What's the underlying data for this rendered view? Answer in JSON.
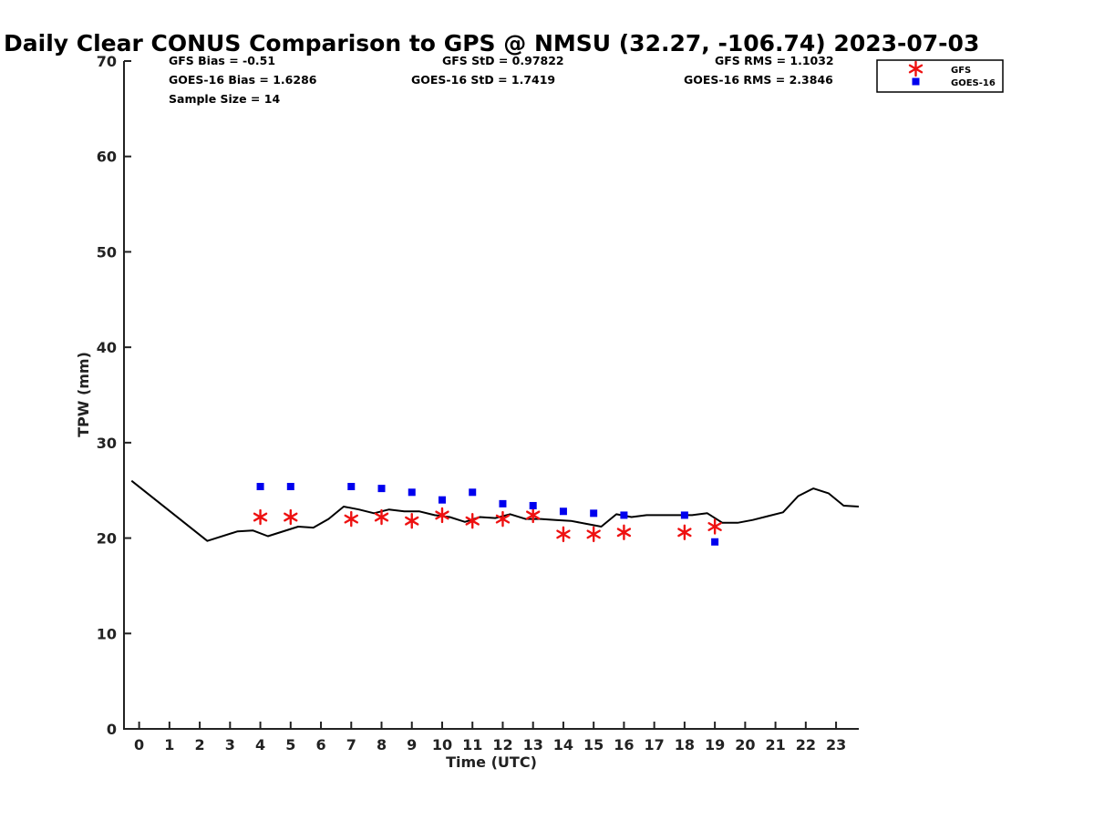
{
  "chart_data": {
    "type": "scatter",
    "title": "Daily Clear CONUS Comparison to GPS @ NMSU (32.27, -106.74) 2023-07-03",
    "xlabel": "Time (UTC)",
    "ylabel": "TPW (mm)",
    "xlim": [
      -0.5,
      23.75
    ],
    "ylim": [
      0,
      70
    ],
    "x_ticks": [
      "0",
      "1",
      "2",
      "3",
      "4",
      "5",
      "6",
      "7",
      "8",
      "9",
      "10",
      "11",
      "12",
      "13",
      "14",
      "15",
      "16",
      "17",
      "18",
      "19",
      "20",
      "21",
      "22",
      "23"
    ],
    "y_ticks": [
      "0",
      "10",
      "20",
      "30",
      "40",
      "50",
      "60",
      "70"
    ],
    "grid": false,
    "legend_position": "top-right",
    "stats": {
      "gfs_bias": "GFS Bias = -0.51",
      "goes_bias": "GOES-16 Bias = 1.6286",
      "sample_size": "Sample Size = 14",
      "gfs_std": "GFS StD = 0.97822",
      "goes_std": "GOES-16 StD = 1.7419",
      "gfs_rms": "GFS RMS = 1.1032",
      "goes_rms": "GOES-16 RMS = 2.3846"
    },
    "series": [
      {
        "name": "GPS",
        "kind": "line",
        "color": "#000000",
        "x": [
          -0.25,
          2.25,
          3.25,
          3.75,
          4.25,
          5.25,
          5.75,
          6.25,
          6.75,
          7.25,
          7.75,
          8.25,
          8.75,
          9.25,
          9.75,
          10.25,
          10.75,
          11.25,
          11.75,
          12.25,
          12.75,
          13.25,
          13.75,
          14.25,
          14.75,
          15.25,
          15.75,
          16.25,
          16.75,
          17.25,
          17.75,
          18.25,
          18.75,
          19.25,
          19.75,
          20.25,
          20.75,
          21.25,
          21.75,
          22.25,
          22.75,
          23.25,
          23.75
        ],
        "y": [
          26.0,
          19.7,
          20.7,
          20.8,
          20.2,
          21.2,
          21.1,
          22.0,
          23.3,
          23.0,
          22.6,
          23.0,
          22.8,
          22.8,
          22.4,
          22.2,
          21.7,
          22.2,
          22.1,
          22.5,
          22.0,
          22.0,
          21.9,
          21.8,
          21.5,
          21.2,
          22.5,
          22.2,
          22.4,
          22.4,
          22.4,
          22.4,
          22.6,
          21.6,
          21.6,
          21.9,
          22.3,
          22.7,
          24.4,
          25.2,
          24.7,
          23.4,
          23.3
        ]
      },
      {
        "name": "GFS",
        "kind": "marker",
        "marker": "asterisk",
        "color": "#ee1111",
        "x": [
          4,
          5,
          7,
          8,
          9,
          10,
          11,
          12,
          13,
          14,
          15,
          16,
          18,
          19
        ],
        "y": [
          22.2,
          22.2,
          22.0,
          22.2,
          21.8,
          22.4,
          21.8,
          22.0,
          22.4,
          20.4,
          20.4,
          20.6,
          20.6,
          21.2
        ]
      },
      {
        "name": "GOES-16",
        "kind": "marker",
        "marker": "square",
        "color": "#0000ee",
        "x": [
          4,
          5,
          7,
          8,
          9,
          10,
          11,
          12,
          13,
          14,
          15,
          16,
          18,
          19
        ],
        "y": [
          25.4,
          25.4,
          25.4,
          25.2,
          24.8,
          24.0,
          24.8,
          23.6,
          23.4,
          22.8,
          22.6,
          22.4,
          22.4,
          19.6
        ]
      }
    ]
  }
}
